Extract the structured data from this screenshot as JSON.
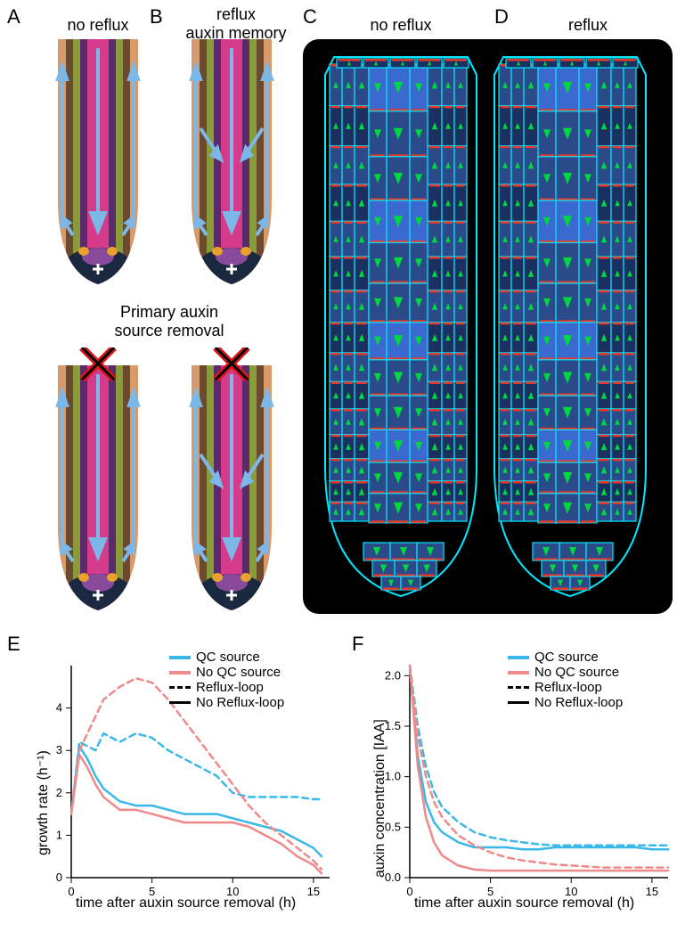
{
  "panels": {
    "A": {
      "label": "A",
      "title": "no reflux"
    },
    "B": {
      "label": "B",
      "title": "reflux\nauxin memory"
    },
    "C": {
      "label": "C",
      "title": "no reflux"
    },
    "D": {
      "label": "D",
      "title": "reflux"
    },
    "E": {
      "label": "E"
    },
    "F": {
      "label": "F"
    },
    "removal_label": "Primary auxin\nsource removal"
  },
  "root_diagram": {
    "colors": {
      "outer": "#d89a6b",
      "layer2": "#6b4a2f",
      "layer3": "#8a9b3a",
      "layer4": "#5a2a6b",
      "center": "#d63a8a",
      "tip_dark": "#1a2840",
      "tip_accent": "#8a4a9b",
      "arrow": "#7bb8e8"
    }
  },
  "cell_diagram": {
    "colors": {
      "bg": "#000000",
      "cell_outline": "#00e8ff",
      "cell_fill_light": "#2a4a8a",
      "cell_fill_dark": "#1a3060",
      "arrow_green": "#00d840",
      "marker_red": "#e83a2a"
    }
  },
  "chart_E": {
    "type": "line",
    "xlabel": "time after auxin source removal (h)",
    "ylabel": "growth rate (h⁻¹)",
    "xlim": [
      0,
      16
    ],
    "ylim": [
      0,
      5
    ],
    "xticks": [
      0,
      5,
      10,
      15
    ],
    "yticks": [
      0,
      1,
      2,
      3,
      4
    ],
    "legend": [
      {
        "label": "QC source",
        "color": "#3bb8e8",
        "style": "solid"
      },
      {
        "label": "No QC source",
        "color": "#f08a8a",
        "style": "solid"
      },
      {
        "label": "Reflux-loop",
        "color": "#000000",
        "style": "dashed"
      },
      {
        "label": "No Reflux-loop",
        "color": "#000000",
        "style": "solid"
      }
    ],
    "series": [
      {
        "name": "QC-solid",
        "color": "#3bb8e8",
        "style": "solid",
        "x": [
          0,
          0.5,
          1,
          1.5,
          2,
          3,
          4,
          5,
          6,
          7,
          8,
          9,
          10,
          11,
          12,
          13,
          14,
          15,
          15.5
        ],
        "y": [
          1.5,
          3.1,
          2.8,
          2.4,
          2.1,
          1.8,
          1.7,
          1.7,
          1.6,
          1.5,
          1.5,
          1.5,
          1.4,
          1.3,
          1.2,
          1.1,
          0.9,
          0.7,
          0.5
        ]
      },
      {
        "name": "NoQC-solid",
        "color": "#f08a8a",
        "style": "solid",
        "x": [
          0,
          0.5,
          1,
          1.5,
          2,
          3,
          4,
          5,
          6,
          7,
          8,
          9,
          10,
          11,
          12,
          13,
          14,
          15,
          15.5
        ],
        "y": [
          1.5,
          2.9,
          2.6,
          2.2,
          1.9,
          1.6,
          1.6,
          1.5,
          1.4,
          1.3,
          1.3,
          1.3,
          1.3,
          1.2,
          1.0,
          0.8,
          0.5,
          0.3,
          0.1
        ]
      },
      {
        "name": "QC-dash",
        "color": "#3bb8e8",
        "style": "dashed",
        "x": [
          0,
          0.5,
          1,
          1.5,
          2,
          3,
          4,
          5,
          6,
          7,
          8,
          9,
          10,
          11,
          12,
          13,
          14,
          15,
          15.5
        ],
        "y": [
          1.5,
          3.2,
          3.1,
          3.0,
          3.4,
          3.2,
          3.4,
          3.3,
          3.0,
          2.8,
          2.6,
          2.4,
          2.0,
          1.9,
          1.9,
          1.9,
          1.9,
          1.85,
          1.85
        ]
      },
      {
        "name": "NoQC-dash",
        "color": "#f08a8a",
        "style": "dashed",
        "x": [
          0,
          0.5,
          1,
          1.5,
          2,
          3,
          4,
          5,
          6,
          7,
          8,
          9,
          10,
          11,
          12,
          13,
          14,
          15,
          15.5
        ],
        "y": [
          1.5,
          3.0,
          3.4,
          3.8,
          4.2,
          4.5,
          4.7,
          4.6,
          4.2,
          3.7,
          3.2,
          2.7,
          2.2,
          1.7,
          1.3,
          1.0,
          0.7,
          0.4,
          0.2
        ]
      }
    ],
    "line_width": 2.5,
    "background_color": "#ffffff",
    "axis_fontsize": 16,
    "tick_fontsize": 13
  },
  "chart_F": {
    "type": "line",
    "xlabel": "time after auxin source removal (h)",
    "ylabel": "auxin concentration [IAA]",
    "xlim": [
      0,
      16
    ],
    "ylim": [
      0,
      2.1
    ],
    "xticks": [
      0,
      5,
      10,
      15
    ],
    "yticks": [
      0.0,
      0.5,
      1.0,
      1.5,
      2.0
    ],
    "legend": [
      {
        "label": "QC source",
        "color": "#3bb8e8",
        "style": "solid"
      },
      {
        "label": "No QC source",
        "color": "#f08a8a",
        "style": "solid"
      },
      {
        "label": "Reflux-loop",
        "color": "#000000",
        "style": "dashed"
      },
      {
        "label": "No Reflux-loop",
        "color": "#000000",
        "style": "solid"
      }
    ],
    "series": [
      {
        "name": "QC-solid",
        "color": "#3bb8e8",
        "style": "solid",
        "x": [
          0,
          0.5,
          1,
          1.5,
          2,
          3,
          4,
          5,
          6,
          7,
          8,
          9,
          10,
          11,
          12,
          13,
          14,
          15,
          16
        ],
        "y": [
          2.1,
          1.2,
          0.75,
          0.55,
          0.45,
          0.35,
          0.3,
          0.3,
          0.3,
          0.28,
          0.28,
          0.3,
          0.3,
          0.3,
          0.3,
          0.3,
          0.3,
          0.28,
          0.28
        ]
      },
      {
        "name": "NoQC-solid",
        "color": "#f08a8a",
        "style": "solid",
        "x": [
          0,
          0.5,
          1,
          1.5,
          2,
          3,
          4,
          5,
          6,
          7,
          8,
          9,
          10,
          11,
          12,
          13,
          14,
          15,
          16
        ],
        "y": [
          2.1,
          1.1,
          0.6,
          0.35,
          0.22,
          0.12,
          0.08,
          0.07,
          0.07,
          0.07,
          0.07,
          0.07,
          0.07,
          0.07,
          0.07,
          0.07,
          0.07,
          0.07,
          0.07
        ]
      },
      {
        "name": "QC-dash",
        "color": "#3bb8e8",
        "style": "dashed",
        "x": [
          0,
          0.5,
          1,
          1.5,
          2,
          3,
          4,
          5,
          6,
          7,
          8,
          9,
          10,
          11,
          12,
          13,
          14,
          15,
          16
        ],
        "y": [
          2.1,
          1.5,
          1.1,
          0.85,
          0.7,
          0.55,
          0.45,
          0.4,
          0.37,
          0.35,
          0.33,
          0.32,
          0.32,
          0.32,
          0.32,
          0.32,
          0.32,
          0.32,
          0.32
        ]
      },
      {
        "name": "NoQC-dash",
        "color": "#f08a8a",
        "style": "dashed",
        "x": [
          0,
          0.5,
          1,
          1.5,
          2,
          3,
          4,
          5,
          6,
          7,
          8,
          9,
          10,
          11,
          12,
          13,
          14,
          15,
          16
        ],
        "y": [
          2.1,
          1.4,
          1.0,
          0.75,
          0.6,
          0.42,
          0.32,
          0.25,
          0.2,
          0.17,
          0.15,
          0.13,
          0.12,
          0.11,
          0.1,
          0.1,
          0.1,
          0.1,
          0.1
        ]
      }
    ],
    "line_width": 2.5,
    "background_color": "#ffffff",
    "axis_fontsize": 16,
    "tick_fontsize": 13
  }
}
